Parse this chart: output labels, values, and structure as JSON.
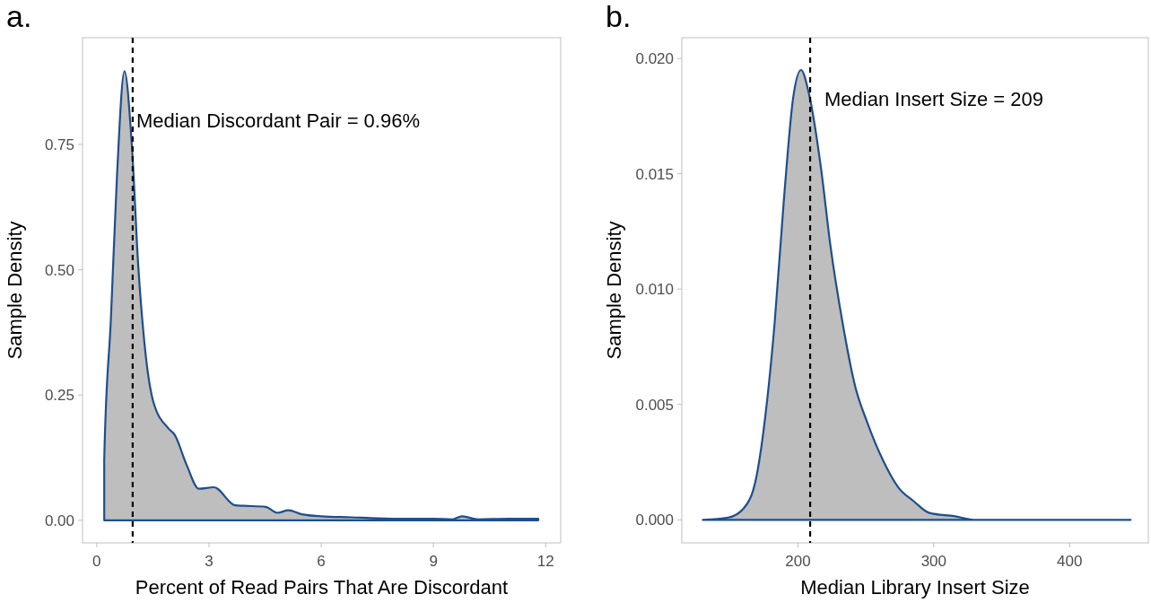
{
  "chart_data": [
    {
      "type": "area",
      "title": "a.",
      "xlabel": "Percent of Read Pairs That Are Discordant",
      "ylabel": "Sample Density",
      "xlim": [
        -0.38,
        12.4
      ],
      "xticks": [
        0,
        3,
        6,
        9,
        12
      ],
      "ylim": [
        -0.045,
        0.963
      ],
      "yticks": [
        {
          "value": 0,
          "label": "0.00"
        },
        {
          "value": 0.25,
          "label": "0.25"
        },
        {
          "value": 0.5,
          "label": "0.50"
        },
        {
          "value": 0.75,
          "label": "0.75"
        }
      ],
      "grid": false,
      "series": [
        {
          "color": "#1f4e8c",
          "x": [
            0.2,
            0.2,
            0.38,
            0.54,
            0.74,
            0.94,
            1.11,
            1.27,
            1.51,
            1.92,
            2.08,
            2.4,
            2.73,
            3.13,
            3.7,
            3.94,
            4.51,
            4.83,
            5.12,
            5.48,
            6.0,
            6.8,
            7.5,
            8.2,
            9.0,
            9.5,
            9.76,
            10.2,
            11.0,
            11.8
          ],
          "values": [
            0,
            0.12,
            0.405,
            0.686,
            0.896,
            0.746,
            0.507,
            0.357,
            0.237,
            0.183,
            0.171,
            0.111,
            0.063,
            0.066,
            0.03,
            0.029,
            0.027,
            0.015,
            0.02,
            0.012,
            0.008,
            0.006,
            0.004,
            0.003,
            0.003,
            0.002,
            0.008,
            0.002,
            0.003,
            0.003
          ]
        }
      ],
      "ref_lines": [
        {
          "axis": "x",
          "value": 0.96,
          "label": "Median Discordant Pair = 0.96%",
          "color": "#000000",
          "line_style": "dashed"
        }
      ]
    },
    {
      "type": "area",
      "title": "b.",
      "xlabel": "Median Library Insert Size",
      "ylabel": "Sample Density",
      "xlim": [
        114.5,
        458
      ],
      "xticks": [
        200,
        300,
        400
      ],
      "ylim": [
        -0.001,
        0.0209
      ],
      "yticks": [
        {
          "value": 0,
          "label": "0.000"
        },
        {
          "value": 0.005,
          "label": "0.005"
        },
        {
          "value": 0.01,
          "label": "0.010"
        },
        {
          "value": 0.015,
          "label": "0.015"
        },
        {
          "value": 0.02,
          "label": "0.020"
        }
      ],
      "grid": false,
      "series": [
        {
          "color": "#1f4e8c",
          "x": [
            130,
            148.7,
            160.1,
            169.2,
            176,
            182.8,
            189.7,
            196.5,
            202.3,
            208,
            217.1,
            223.9,
            233,
            242.1,
            251.2,
            262.5,
            274,
            285.4,
            296.8,
            315,
            331,
            360,
            400,
            445
          ],
          "values": [
            0,
            0.0001,
            0.0005,
            0.0018,
            0.0045,
            0.0085,
            0.0139,
            0.0183,
            0.0195,
            0.0185,
            0.0152,
            0.0119,
            0.0085,
            0.0058,
            0.0042,
            0.0026,
            0.0014,
            0.0008,
            0.0003,
            0.00016,
            0,
            0,
            0,
            0
          ]
        }
      ],
      "ref_lines": [
        {
          "axis": "x",
          "value": 209,
          "label": "Median Insert Size = 209",
          "color": "#000000",
          "line_style": "dashed"
        }
      ]
    }
  ]
}
